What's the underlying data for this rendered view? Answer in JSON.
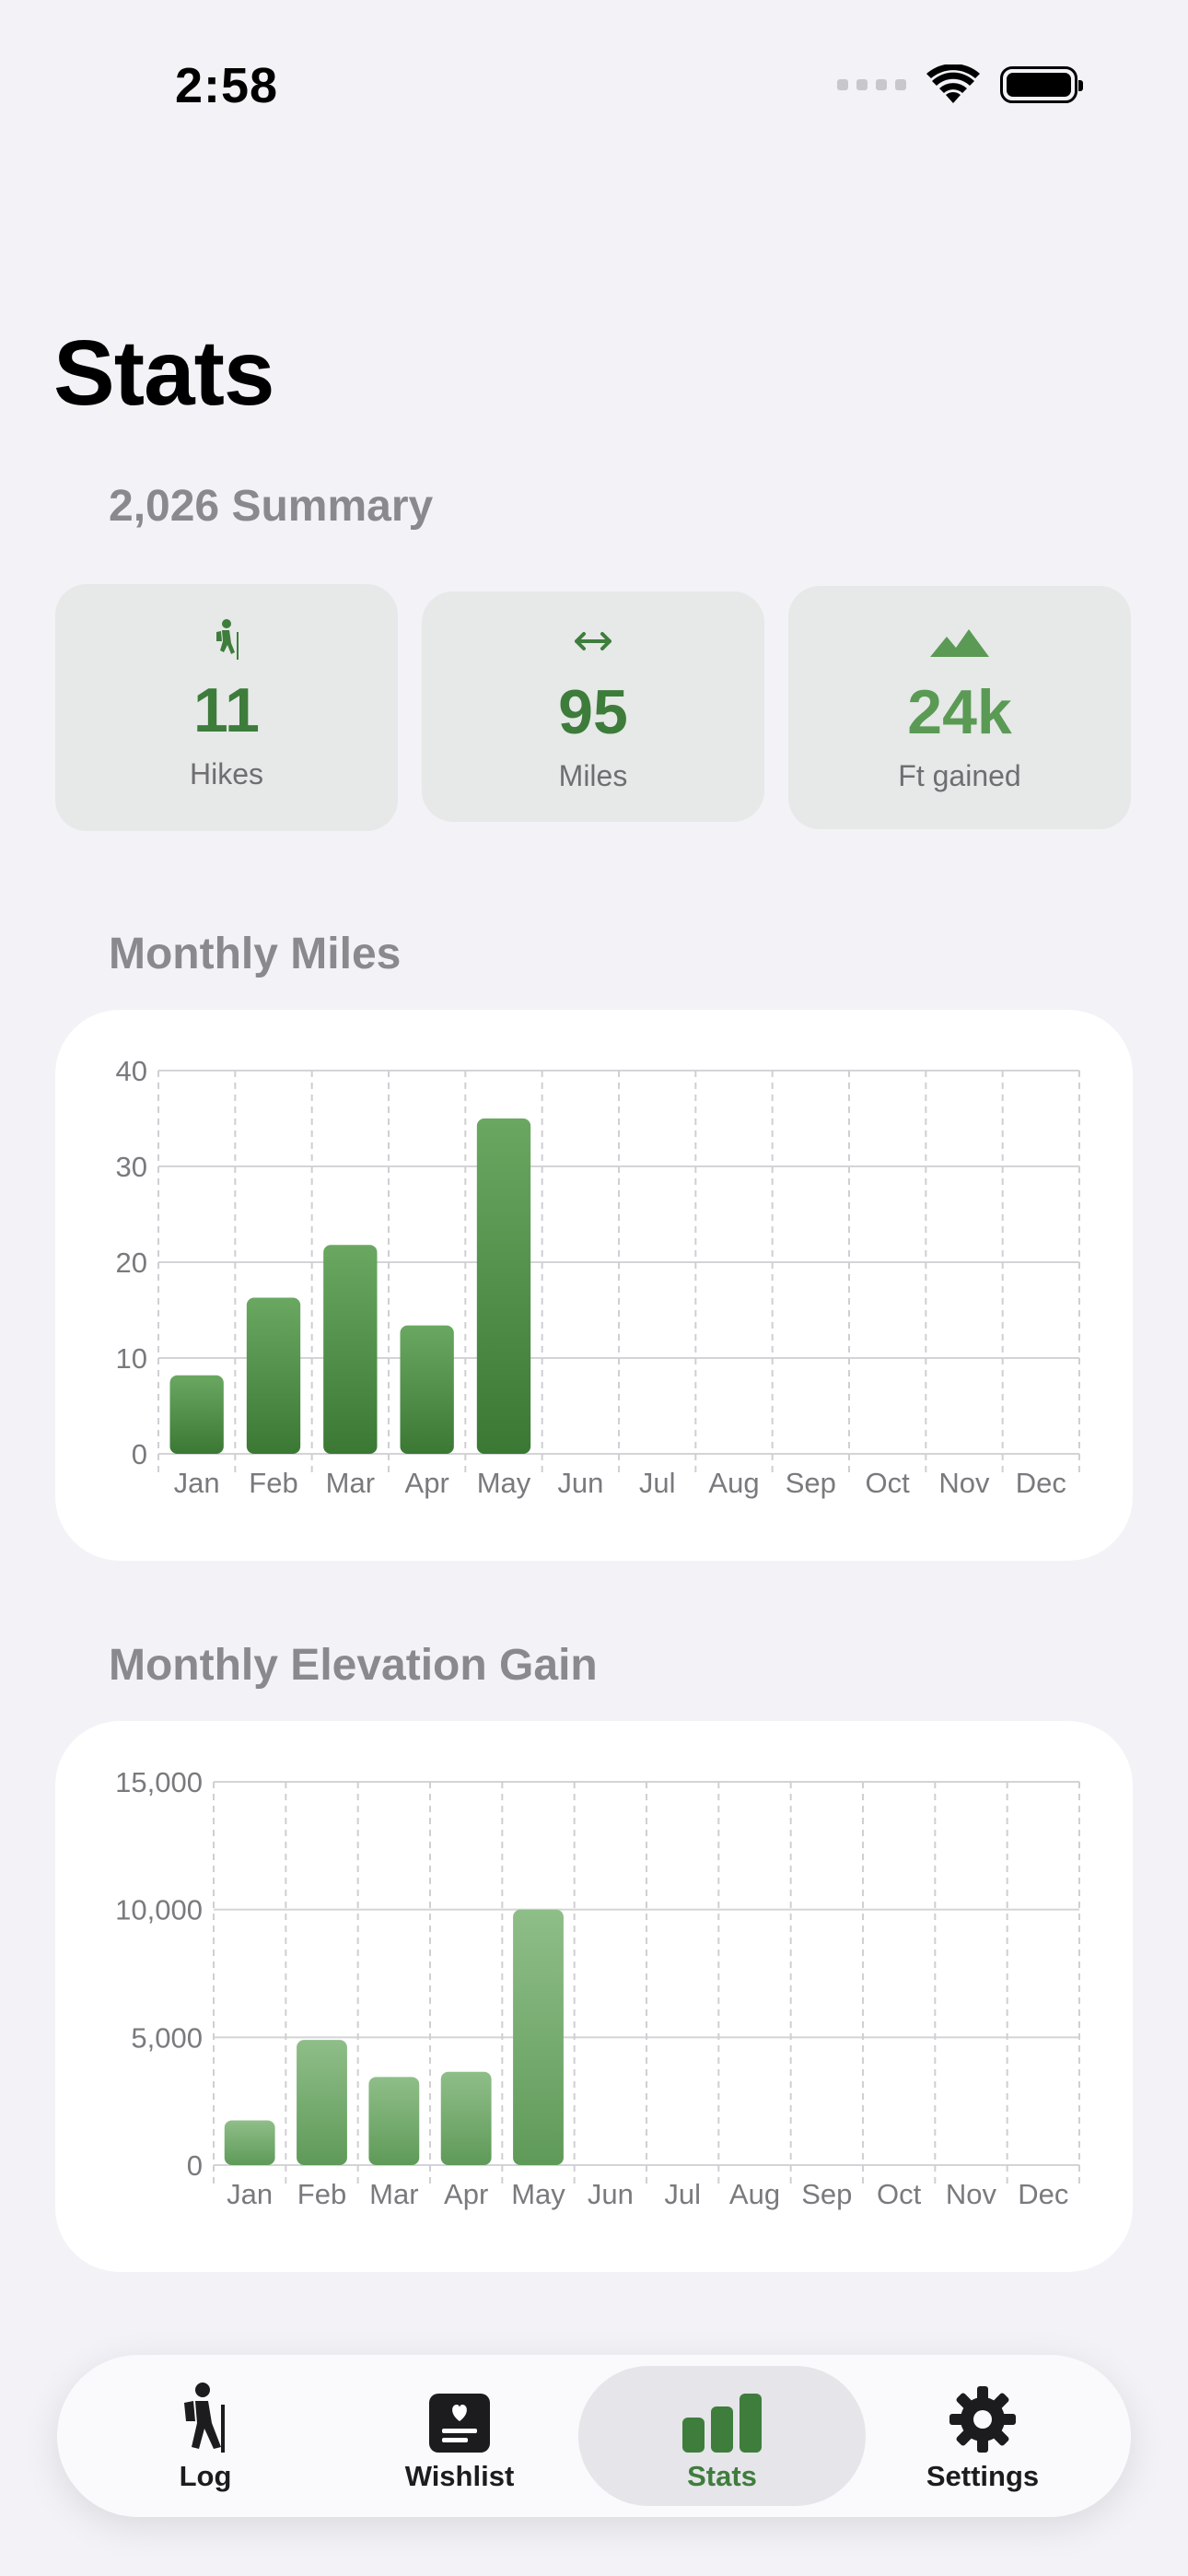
{
  "status_bar": {
    "time": "2:58"
  },
  "page": {
    "title": "Stats"
  },
  "summary": {
    "title": "2,026 Summary",
    "cards": [
      {
        "icon": "hiker-icon",
        "value": "11",
        "label": "Hikes"
      },
      {
        "icon": "arrows-horizontal-icon",
        "value": "95",
        "label": "Miles"
      },
      {
        "icon": "mountains-icon",
        "value": "24k",
        "label": "Ft gained"
      }
    ]
  },
  "monthly_miles": {
    "title": "Monthly Miles"
  },
  "monthly_elevation": {
    "title": "Monthly Elevation Gain"
  },
  "chart_data": [
    {
      "type": "bar",
      "title": "Monthly Miles",
      "categories": [
        "Jan",
        "Feb",
        "Mar",
        "Apr",
        "May",
        "Jun",
        "Jul",
        "Aug",
        "Sep",
        "Oct",
        "Nov",
        "Dec"
      ],
      "values": [
        8.2,
        16.3,
        21.8,
        13.4,
        35,
        0,
        0,
        0,
        0,
        0,
        0,
        0
      ],
      "ylim": [
        0,
        40
      ],
      "yticks": [
        "0",
        "10",
        "20",
        "30",
        "40"
      ],
      "color": "#3d7b37"
    },
    {
      "type": "bar",
      "title": "Monthly Elevation Gain",
      "categories": [
        "Jan",
        "Feb",
        "Mar",
        "Apr",
        "May",
        "Jun",
        "Jul",
        "Aug",
        "Sep",
        "Oct",
        "Nov",
        "Dec"
      ],
      "values": [
        1750,
        4900,
        3450,
        3650,
        10000,
        0,
        0,
        0,
        0,
        0,
        0,
        0
      ],
      "ylim": [
        0,
        15000
      ],
      "yticks": [
        "0",
        "5,000",
        "10,000",
        "15,000"
      ],
      "color": "#6aa364"
    }
  ],
  "tabs": [
    {
      "icon": "hiker-icon",
      "label": "Log",
      "active": false
    },
    {
      "icon": "wishlist-icon",
      "label": "Wishlist",
      "active": false
    },
    {
      "icon": "bar-chart-icon",
      "label": "Stats",
      "active": true
    },
    {
      "icon": "gear-icon",
      "label": "Settings",
      "active": false
    }
  ],
  "colors": {
    "accent": "#3d7c3b",
    "background": "#f2f2f7",
    "card": "#e6e9e7"
  }
}
